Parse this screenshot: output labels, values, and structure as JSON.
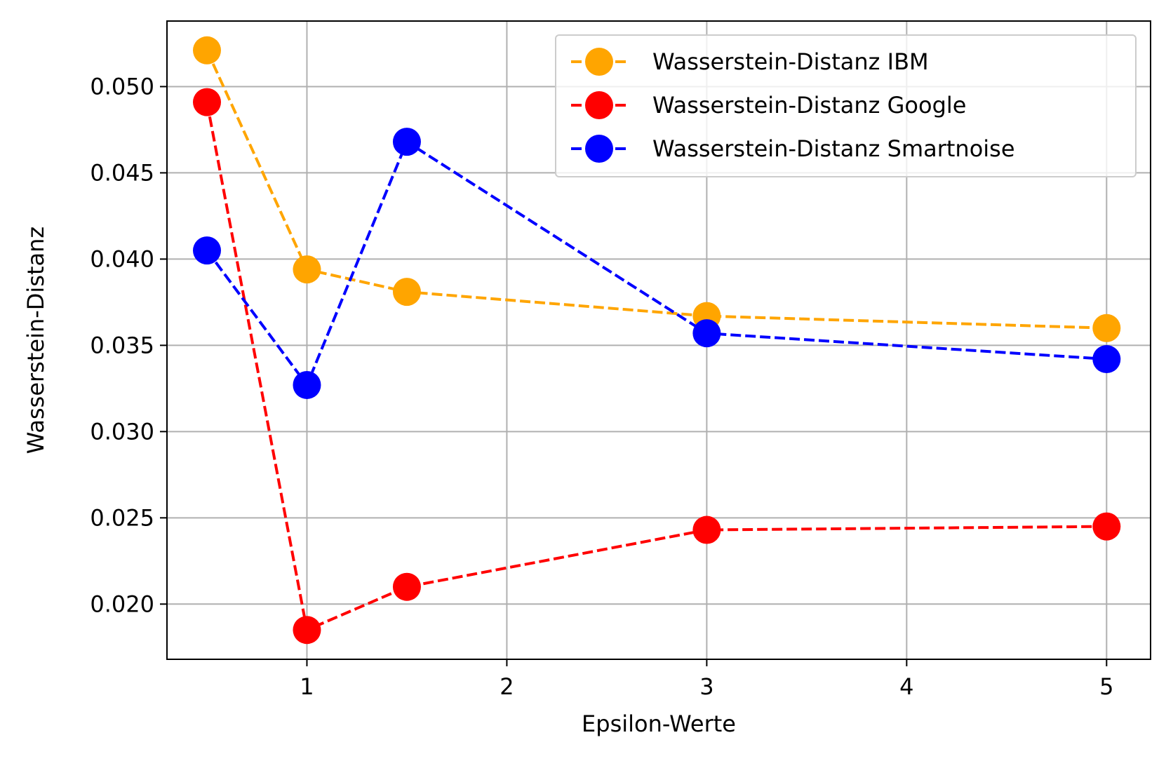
{
  "chart_data": {
    "type": "line",
    "xlabel": "Epsilon-Werte",
    "ylabel": "Wasserstein-Distanz",
    "xlim": [
      0.3,
      5.22
    ],
    "ylim": [
      0.0168,
      0.0538
    ],
    "xticks": [
      1,
      2,
      3,
      4,
      5
    ],
    "yticks": [
      0.02,
      0.025,
      0.03,
      0.035,
      0.04,
      0.045,
      0.05
    ],
    "xtick_labels": [
      "1",
      "2",
      "3",
      "4",
      "5"
    ],
    "ytick_labels": [
      "0.020",
      "0.025",
      "0.030",
      "0.035",
      "0.040",
      "0.045",
      "0.050"
    ],
    "grid": true,
    "legend_position": "top-right",
    "x": [
      0.5,
      1,
      1.5,
      3,
      5
    ],
    "series": [
      {
        "name": "Wasserstein-Distanz IBM",
        "color": "#ffa500",
        "values": [
          0.0521,
          0.0394,
          0.0381,
          0.0367,
          0.036
        ]
      },
      {
        "name": "Wasserstein-Distanz Google",
        "color": "#ff0000",
        "values": [
          0.0491,
          0.0185,
          0.021,
          0.0243,
          0.0245
        ]
      },
      {
        "name": "Wasserstein-Distanz Smartnoise",
        "color": "#0000ff",
        "values": [
          0.0405,
          0.0327,
          0.0468,
          0.0357,
          0.0342
        ]
      }
    ]
  }
}
